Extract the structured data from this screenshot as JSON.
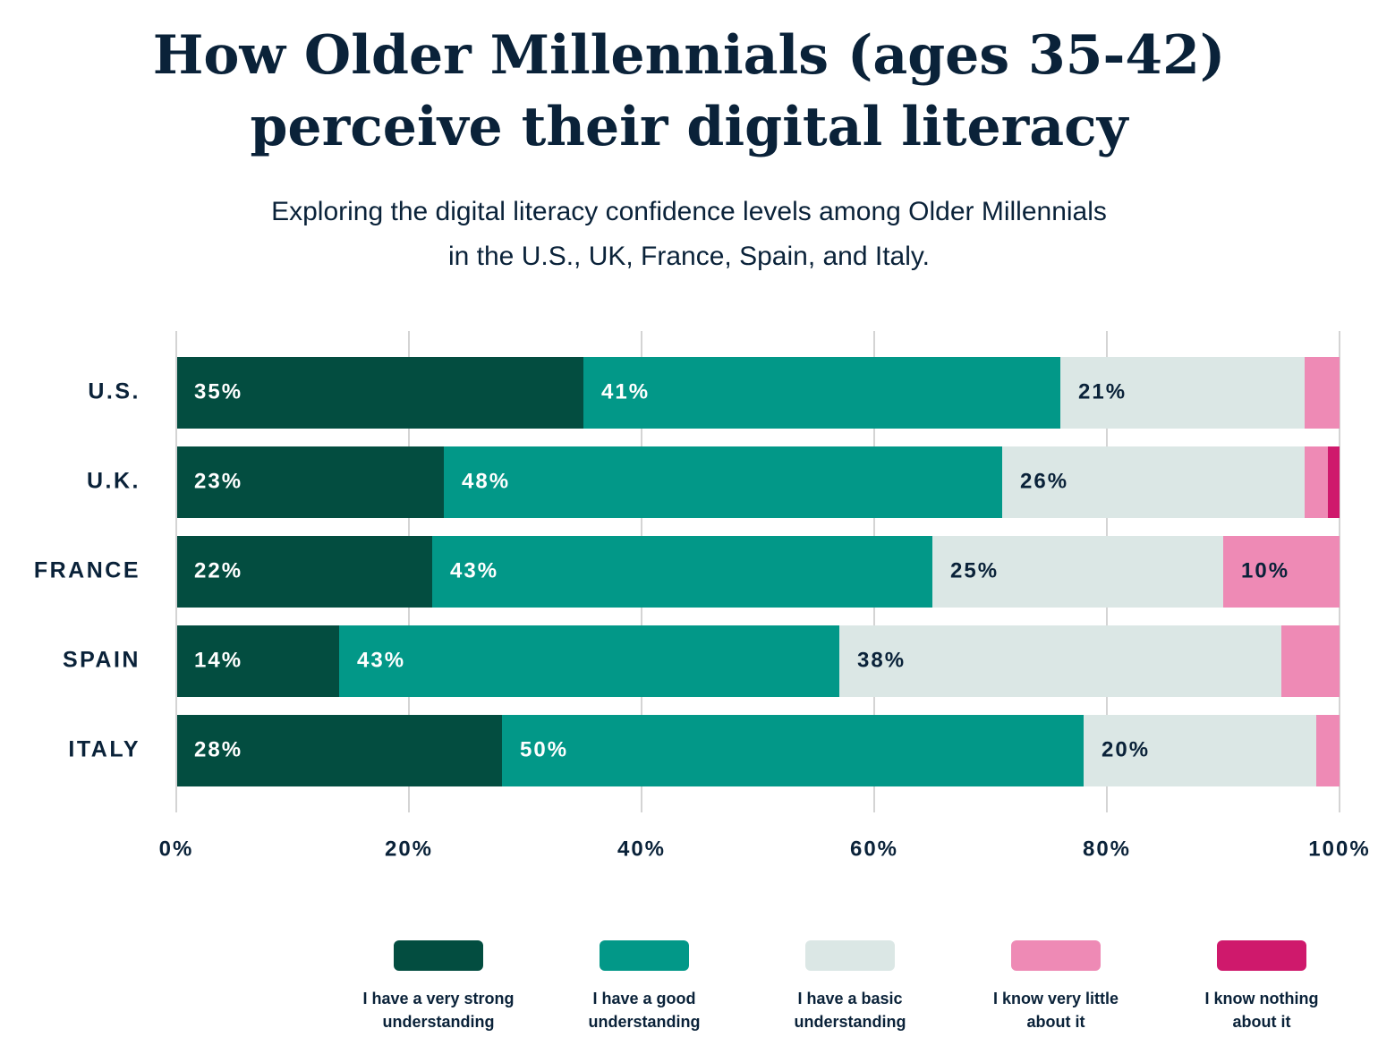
{
  "chart_data": {
    "type": "stacked-bar-horizontal",
    "title": "How Older Millennials (ages 35-42)\nperceive their digital literacy",
    "subtitle": "Exploring the digital literacy confidence levels among Older Millennials\nin the U.S., UK, France, Spain, and Italy.",
    "categories": [
      "U.S.",
      "U.K.",
      "FRANCE",
      "SPAIN",
      "ITALY"
    ],
    "series": [
      {
        "name": "I have a very strong understanding",
        "color": "#034d40",
        "label_color": "#ffffff",
        "values": [
          35,
          23,
          22,
          14,
          28
        ],
        "value_labels": [
          "35%",
          "23%",
          "22%",
          "14%",
          "28%"
        ]
      },
      {
        "name": "I have a good understanding",
        "color": "#029888",
        "label_color": "#ffffff",
        "values": [
          41,
          48,
          43,
          43,
          50
        ],
        "value_labels": [
          "41%",
          "48%",
          "43%",
          "43%",
          "50%"
        ]
      },
      {
        "name": "I have a basic understanding",
        "color": "#dbe7e5",
        "label_color": "#0a2239",
        "values": [
          21,
          26,
          25,
          38,
          20
        ],
        "value_labels": [
          "21%",
          "26%",
          "25%",
          "38%",
          "20%"
        ]
      },
      {
        "name": "I know very little about it",
        "color": "#ee8ab5",
        "label_color": "#0a2239",
        "values": [
          3,
          2,
          10,
          5,
          2
        ],
        "value_labels": [
          null,
          null,
          "10%",
          null,
          null
        ]
      },
      {
        "name": "I know nothing about it",
        "color": "#cf196c",
        "label_color": "#ffffff",
        "values": [
          0,
          1,
          0,
          0,
          0
        ],
        "value_labels": [
          null,
          null,
          null,
          null,
          null
        ]
      }
    ],
    "xlim": [
      0,
      100
    ],
    "xticks": [
      {
        "value": 0,
        "label": "0%"
      },
      {
        "value": 20,
        "label": "20%"
      },
      {
        "value": 40,
        "label": "40%"
      },
      {
        "value": 60,
        "label": "60%"
      },
      {
        "value": 80,
        "label": "80%"
      },
      {
        "value": 100,
        "label": "100%"
      }
    ],
    "grid": true
  }
}
